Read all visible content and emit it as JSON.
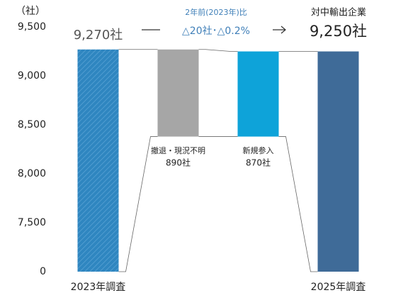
{
  "chart_data": {
    "type": "waterfall",
    "y_unit": "（社）",
    "categories": [
      "2023年調査",
      "撤退・現況不明",
      "新規参入",
      "2025年調査"
    ],
    "kinds": [
      "total",
      "decrease",
      "increase",
      "total"
    ],
    "values": [
      9270,
      890,
      870,
      9250
    ],
    "value_labels": [
      "9,270社",
      "890社",
      "870社",
      "9,250社"
    ],
    "colors": [
      "#2f86c0",
      "#a6a6a6",
      "#0ea3d9",
      "#3f6b98"
    ],
    "hatched": [
      true,
      false,
      false,
      false
    ],
    "ylim": [
      0,
      9500
    ],
    "yticks": [
      0,
      {
        "value": 7500,
        "label": "7,500"
      },
      {
        "value": 8000,
        "label": "8,000"
      },
      {
        "value": 8500,
        "label": "8,500"
      },
      {
        "value": 9000,
        "label": "9,000"
      },
      {
        "value": 9500,
        "label": "9,500"
      }
    ],
    "annotations": {
      "comparison_title": "2年前(2023年)比",
      "comparison": "△20社･△0.2%",
      "series_title": "対中輸出企業"
    }
  }
}
